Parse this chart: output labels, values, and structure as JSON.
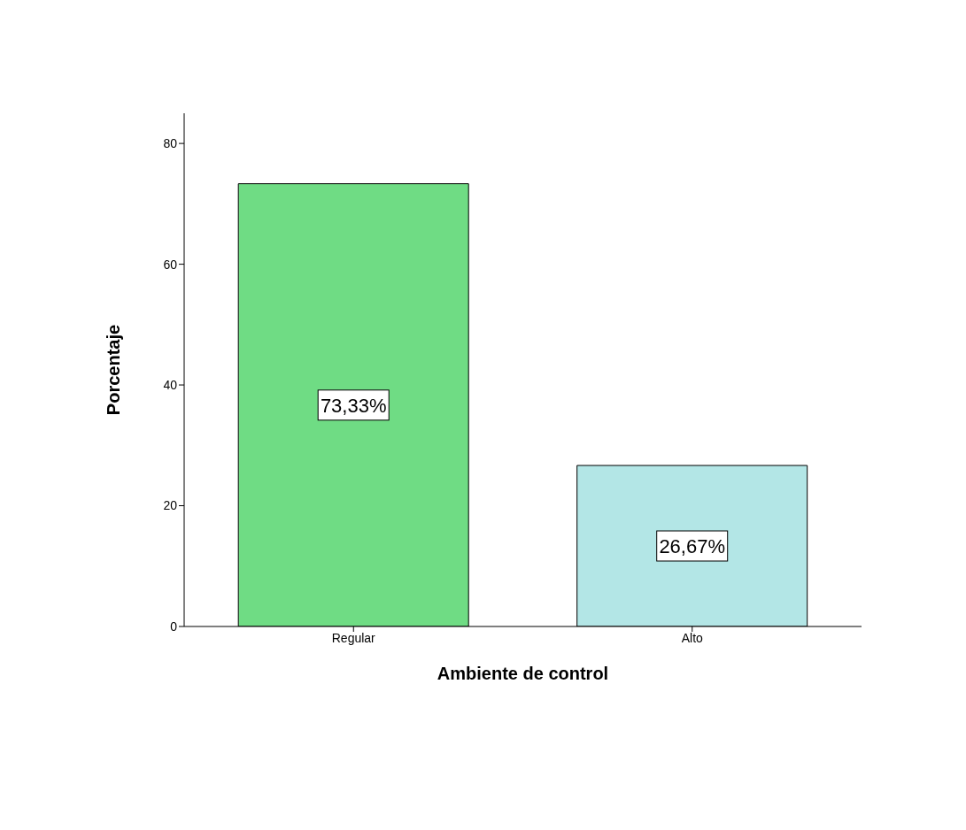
{
  "chart_data": {
    "type": "bar",
    "xlabel": "Ambiente de control",
    "ylabel": "Porcentaje",
    "categories": [
      "Regular",
      "Alto"
    ],
    "values": [
      73.33,
      26.67
    ],
    "colors": [
      "#6fdc84",
      "#b3e6e6"
    ],
    "value_labels": [
      "73,33%",
      "26,67%"
    ],
    "ylim": [
      0,
      85
    ],
    "yticks": [
      0,
      20,
      40,
      60,
      80
    ]
  }
}
